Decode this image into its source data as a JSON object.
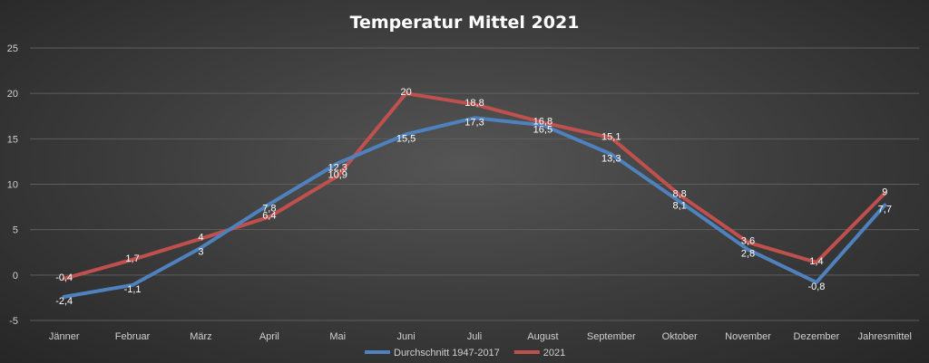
{
  "chart_data": {
    "type": "line",
    "title": "Temperatur Mittel 2021",
    "categories": [
      "Jänner",
      "Februar",
      "März",
      "April",
      "Mai",
      "Juni",
      "Juli",
      "August",
      "September",
      "Oktober",
      "November",
      "Dezember",
      "Jahresmittel"
    ],
    "yticks": [
      "-5",
      "0",
      "5",
      "10",
      "15",
      "20",
      "25"
    ],
    "ylim": [
      -5,
      25
    ],
    "grid": true,
    "legend_position": "bottom",
    "series": [
      {
        "name": "Durchschnitt 1947-2017",
        "color": "#4f81bd",
        "values": [
          -2.4,
          -1.1,
          3,
          7.8,
          12.3,
          15.5,
          17.3,
          16.5,
          13.3,
          8.1,
          2.8,
          -0.8,
          7.7
        ],
        "labels": [
          "-2,4",
          "-1,1",
          "3",
          "7,8",
          "12,3",
          "15,5",
          "17,3",
          "16,5",
          "13,3",
          "8,1",
          "2,8",
          "-0,8",
          "7,7"
        ]
      },
      {
        "name": "2021",
        "color": "#c0504d",
        "values": [
          -0.4,
          1.7,
          4,
          6.4,
          10.9,
          20,
          18.8,
          16.8,
          15.1,
          8.8,
          3.6,
          1.4,
          9
        ],
        "labels": [
          "-0,4",
          "1,7",
          "4",
          "6,4",
          "10,9",
          "20",
          "18,8",
          "16,8",
          "15,1",
          "8,8",
          "3,6",
          "1,4",
          "9"
        ]
      }
    ]
  }
}
